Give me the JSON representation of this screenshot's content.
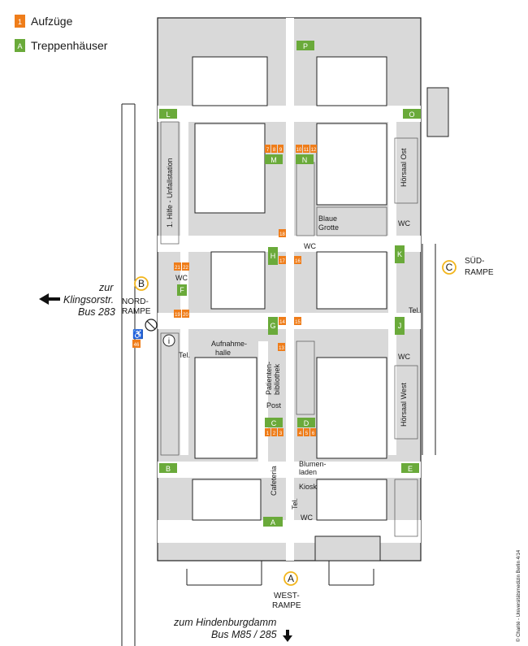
{
  "legend": {
    "elevators_marker": "1",
    "elevators_label": "Aufzüge",
    "stairs_marker": "A",
    "stairs_label": "Treppenhäuser"
  },
  "entrances": {
    "north": {
      "letter": "B",
      "line1": "NORD-",
      "line2": "RAMPE"
    },
    "south": {
      "letter": "C",
      "line1": "SÜD-",
      "line2": "RAMPE"
    },
    "west": {
      "letter": "A",
      "line1": "WEST-",
      "line2": "RAMPE"
    }
  },
  "directions": {
    "left_line1": "zur",
    "left_line2": "Klingsorstr.",
    "left_line3": "Bus 283",
    "bottom_line1": "zum Hindenburgdamm",
    "bottom_line2": "Bus M85 / 285"
  },
  "rooms": {
    "erste_hilfe": "1. Hilfe - Unfallstation",
    "blaue_line1": "Blaue",
    "blaue_line2": "Grotte",
    "aufnahme_line1": "Aufnahme-",
    "aufnahme_line2": "halle",
    "patienten_line1": "Patienten-",
    "patienten_line2": "bibliothek",
    "post": "Post",
    "cafeteria": "Cafeteria",
    "blumen_line1": "Blumen-",
    "blumen_line2": "laden",
    "kiosk": "Kiosk",
    "hoersaal_ost": "Hörsaal Ost",
    "hoersaal_west": "Hörsaal West",
    "wc": "WC",
    "tel": "Tel."
  },
  "stairs": [
    "A",
    "B",
    "C",
    "D",
    "E",
    "F",
    "G",
    "H",
    "J",
    "K",
    "L",
    "M",
    "N",
    "O",
    "P"
  ],
  "elevators": [
    "1",
    "2",
    "3",
    "4",
    "5",
    "6",
    "7",
    "8",
    "9",
    "10",
    "11",
    "12",
    "13",
    "14",
    "15",
    "16",
    "17",
    "18",
    "19",
    "20",
    "21",
    "22",
    "46"
  ],
  "credit": "© Charité - Universitätsmedizin Berlin 4/14",
  "colors": {
    "building": "#d9d9d9",
    "corridor": "#ffffff",
    "outline": "#222222",
    "stair_green": "#6aaa3a",
    "elevator_orange": "#ef7d1a",
    "entrance_yellow": "#f2b51c"
  }
}
